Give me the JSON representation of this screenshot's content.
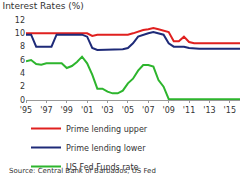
{
  "chart_data": {
    "type": "line",
    "title": "Interest Rates (%)",
    "source": "Source: Central Bank of Barbados, US Fed",
    "x": [
      1995,
      1995.5,
      1996,
      1996.5,
      1997,
      1997.5,
      1998,
      1998.5,
      1999,
      1999.5,
      2000,
      2000.5,
      2001,
      2001.5,
      2002,
      2002.5,
      2003,
      2003.5,
      2004,
      2004.5,
      2005,
      2005.5,
      2006,
      2006.5,
      2007,
      2007.5,
      2008,
      2008.5,
      2009,
      2009.5,
      2010,
      2010.5,
      2011,
      2011.5,
      2012,
      2012.5,
      2013,
      2013.5,
      2014,
      2014.5,
      2015,
      2015.5,
      2016
    ],
    "series": [
      {
        "name": "Prime lending upper",
        "color": "#e0201f",
        "values": [
          10,
          10,
          10,
          10,
          10,
          10,
          10,
          10,
          10,
          10,
          10,
          10,
          10,
          9.6,
          9.8,
          9.8,
          9.8,
          9.8,
          9.8,
          9.8,
          9.8,
          10,
          10.3,
          10.5,
          10.6,
          10.8,
          10.6,
          10.4,
          10.2,
          8.8,
          8.8,
          9.5,
          8.7,
          8.5,
          8.5,
          8.5,
          8.5,
          8.5,
          8.5,
          8.5,
          8.5,
          8.5,
          8.5
        ]
      },
      {
        "name": "Prime lending lower",
        "color": "#1e2a78",
        "values": [
          9.8,
          9.8,
          8,
          8,
          8,
          8,
          9.8,
          9.8,
          9.8,
          9.8,
          9.8,
          9.8,
          9.5,
          7.8,
          7.5,
          7.5,
          7.5,
          7.5,
          7.5,
          7.6,
          7.8,
          8.5,
          9.5,
          9.8,
          10,
          10.2,
          10,
          9.8,
          8.5,
          8,
          8,
          8,
          7.8,
          7.7,
          7.7,
          7.7,
          7.7,
          7.7,
          7.7,
          7.7,
          7.7,
          7.7,
          7.7
        ]
      },
      {
        "name": "US Fed Funds rate",
        "color": "#2db52d",
        "values": [
          5.8,
          6,
          5.4,
          5.3,
          5.5,
          5.5,
          5.5,
          5.5,
          4.8,
          5.1,
          5.7,
          6.5,
          5.5,
          3.8,
          1.7,
          1.7,
          1.25,
          1,
          1,
          1.4,
          2.5,
          3.2,
          4.4,
          5.25,
          5.25,
          5,
          3,
          2,
          0.15,
          0.15,
          0.15,
          0.15,
          0.15,
          0.15,
          0.15,
          0.15,
          0.15,
          0.15,
          0.15,
          0.15,
          0.15,
          0.15,
          0.13
        ]
      }
    ],
    "xlim": [
      1995,
      2016
    ],
    "xticks": [
      {
        "value": 1995,
        "label": "'95"
      },
      {
        "value": 1997,
        "label": "'97"
      },
      {
        "value": 1999,
        "label": "'99"
      },
      {
        "value": 2001,
        "label": "'01"
      },
      {
        "value": 2003,
        "label": "'03"
      },
      {
        "value": 2005,
        "label": "'05"
      },
      {
        "value": 2007,
        "label": "'07"
      },
      {
        "value": 2009,
        "label": "'09"
      },
      {
        "value": 2011,
        "label": "'11"
      },
      {
        "value": 2013,
        "label": "'13"
      },
      {
        "value": 2015,
        "label": "'15"
      }
    ],
    "ylim": [
      0,
      12
    ],
    "yticks": [
      0,
      2,
      4,
      6,
      8,
      10,
      12
    ],
    "grid": false,
    "legend": "bottom"
  }
}
